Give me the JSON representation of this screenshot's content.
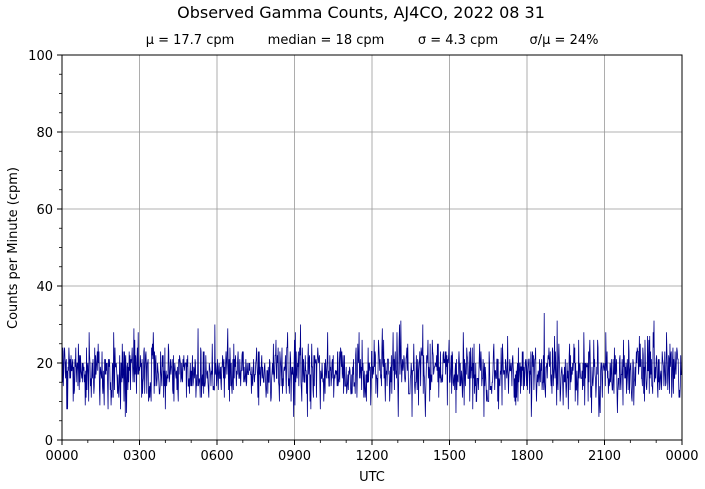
{
  "chart_data": {
    "type": "line",
    "title": "Observed Gamma Counts, AJ4CO, 2022 08 31",
    "subtitle_stats": [
      "μ = 17.7 cpm",
      "median = 18 cpm",
      "σ = 4.3 cpm",
      "σ/μ = 24%"
    ],
    "xlabel": "UTC",
    "ylabel": "Counts per Minute (cpm)",
    "xlim_minutes": [
      0,
      1440
    ],
    "ylim": [
      0,
      100
    ],
    "x_ticks": [
      {
        "label": "0000",
        "minute": 0
      },
      {
        "label": "0300",
        "minute": 180
      },
      {
        "label": "0600",
        "minute": 360
      },
      {
        "label": "0900",
        "minute": 540
      },
      {
        "label": "1200",
        "minute": 720
      },
      {
        "label": "1500",
        "minute": 900
      },
      {
        "label": "1800",
        "minute": 1080
      },
      {
        "label": "2100",
        "minute": 1260
      },
      {
        "label": "0000",
        "minute": 1440
      }
    ],
    "y_ticks": [
      0,
      20,
      40,
      60,
      80,
      100
    ],
    "grid": true,
    "series": [
      {
        "color": "#00008b",
        "summary": {
          "mean": 17.7,
          "median": 18,
          "std": 4.3,
          "min": 6,
          "max": 33
        },
        "notable_points": [
          {
            "minute": 240,
            "value": 8
          },
          {
            "minute": 355,
            "value": 30
          },
          {
            "minute": 1090,
            "value": 6
          },
          {
            "minute": 1120,
            "value": 33
          },
          {
            "minute": 1150,
            "value": 31
          }
        ]
      }
    ]
  }
}
